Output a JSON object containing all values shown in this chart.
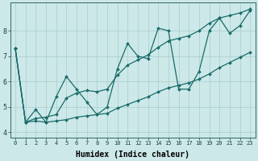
{
  "xlabel": "Humidex (Indice chaleur)",
  "ylabel": "",
  "background_color": "#cce8e8",
  "grid_color": "#aacccc",
  "line_color": "#1a6b6b",
  "x_data": [
    0,
    1,
    2,
    3,
    4,
    5,
    6,
    7,
    8,
    9,
    10,
    11,
    12,
    13,
    14,
    15,
    16,
    17,
    18,
    19,
    20,
    21,
    22,
    23
  ],
  "y_main": [
    7.3,
    4.4,
    4.9,
    4.4,
    5.4,
    6.2,
    5.7,
    5.2,
    4.7,
    5.0,
    6.5,
    7.5,
    7.0,
    6.9,
    8.1,
    8.0,
    5.7,
    5.7,
    6.4,
    8.0,
    8.5,
    7.9,
    8.2,
    8.8
  ],
  "y_low": [
    7.3,
    4.4,
    4.45,
    4.4,
    4.45,
    4.5,
    4.6,
    4.65,
    4.7,
    4.75,
    4.95,
    5.1,
    5.25,
    5.4,
    5.6,
    5.75,
    5.85,
    5.95,
    6.1,
    6.3,
    6.55,
    6.75,
    6.95,
    7.15
  ],
  "y_high": [
    7.3,
    4.4,
    4.55,
    4.6,
    4.7,
    5.35,
    5.55,
    5.65,
    5.6,
    5.7,
    6.25,
    6.65,
    6.85,
    7.05,
    7.35,
    7.6,
    7.7,
    7.8,
    8.0,
    8.3,
    8.5,
    8.6,
    8.7,
    8.85
  ],
  "ylim": [
    3.8,
    9.1
  ],
  "xlim": [
    -0.5,
    23.5
  ],
  "yticks": [
    4,
    5,
    6,
    7,
    8
  ],
  "xticks": [
    0,
    1,
    2,
    3,
    4,
    5,
    6,
    7,
    8,
    9,
    10,
    11,
    12,
    13,
    14,
    15,
    16,
    17,
    18,
    19,
    20,
    21,
    22,
    23
  ],
  "xtick_labels": [
    "0",
    "1",
    "2",
    "3",
    "4",
    "5",
    "6",
    "7",
    "8",
    "9",
    "10",
    "11",
    "12",
    "13",
    "14",
    "15",
    "16",
    "17",
    "18",
    "19",
    "20",
    "21",
    "22",
    "23"
  ]
}
